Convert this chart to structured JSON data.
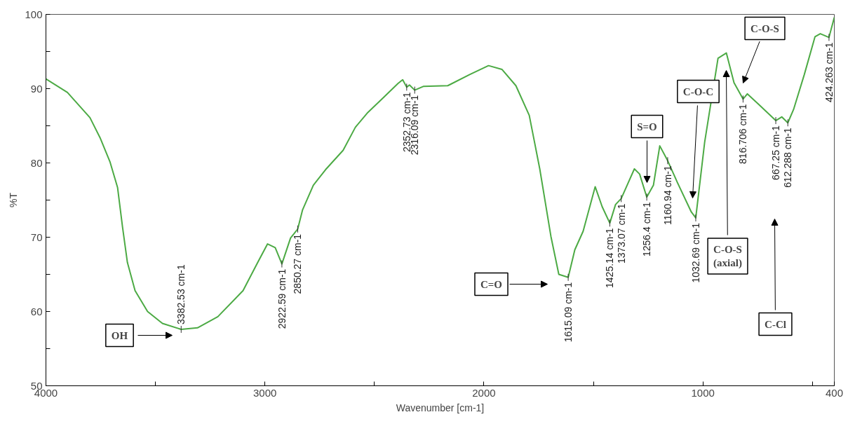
{
  "chart_data": {
    "type": "line",
    "xlabel": "Wavenumber [cm-1]",
    "ylabel": "%T",
    "xlim": [
      4000,
      400
    ],
    "ylim": [
      50,
      100
    ],
    "xticks": [
      4000,
      {
        "value": 3500,
        "label": null
      },
      3000,
      {
        "value": 2500,
        "label": null
      },
      2000,
      {
        "value": 1500,
        "label": null
      },
      1000,
      {
        "value": 500,
        "label": null
      },
      400
    ],
    "yticks": [
      50,
      {
        "value": 55,
        "label": null
      },
      60,
      {
        "value": 65,
        "label": null
      },
      70,
      {
        "value": 75,
        "label": null
      },
      80,
      {
        "value": 85,
        "label": null
      },
      90,
      {
        "value": 95,
        "label": null
      },
      100
    ],
    "grid": false,
    "marker": "none",
    "line_style": "solid",
    "series": [
      {
        "color": "#4caa44",
        "x": [
          4000,
          3902,
          3799,
          3753,
          3707,
          3673,
          3650,
          3628,
          3593,
          3536,
          3468,
          3382.53,
          3308,
          3215,
          3100,
          3033,
          2988,
          2953,
          2922.59,
          2883,
          2850.27,
          2828,
          2779,
          2723,
          2643,
          2587,
          2530,
          2459,
          2392,
          2371,
          2352.73,
          2340,
          2316.09,
          2277,
          2165,
          2065,
          1979,
          1918,
          1854,
          1793,
          1745,
          1694,
          1658,
          1615.09,
          1585,
          1547,
          1492,
          1460,
          1425.14,
          1399,
          1373.07,
          1313,
          1289,
          1256.4,
          1226,
          1197,
          1160.94,
          1117,
          1053,
          1032.69,
          992,
          931,
          893,
          858,
          816.706,
          797,
          746,
          667.25,
          640,
          612.288,
          586,
          537,
          488,
          464,
          424.263,
          400
        ],
        "values": [
          91.3,
          89.5,
          86.1,
          83.4,
          80.1,
          76.7,
          71.3,
          66.6,
          62.8,
          60.0,
          58.4,
          57.6,
          57.8,
          59.3,
          62.8,
          66.6,
          69.1,
          68.6,
          66.4,
          69.9,
          71.1,
          73.7,
          77.0,
          79.1,
          81.7,
          84.8,
          86.8,
          88.8,
          90.7,
          91.2,
          90.2,
          90.5,
          89.8,
          90.3,
          90.4,
          91.9,
          93.1,
          92.6,
          90.4,
          86.4,
          79.2,
          70.1,
          65.0,
          64.6,
          68.3,
          70.8,
          76.8,
          74.1,
          71.9,
          74.4,
          75.2,
          79.2,
          78.5,
          75.4,
          77.0,
          82.3,
          80.3,
          77.4,
          73.4,
          72.6,
          82.8,
          94.1,
          94.8,
          90.8,
          88.6,
          89.3,
          87.9,
          85.7,
          86.2,
          85.4,
          87.2,
          91.9,
          97.0,
          97.4,
          96.9,
          99.6
        ]
      }
    ],
    "annotations": [
      {
        "text": "3382.53 cm-1",
        "x": 3382.53,
        "y": 57.6
      },
      {
        "text": "2922.59 cm-1",
        "x": 2922.59,
        "y": 66.4
      },
      {
        "text": "2850.27 cm-1",
        "x": 2850.27,
        "y": 71.1
      },
      {
        "text": "2352.73 cm-1",
        "x": 2352.73,
        "y": 90.2
      },
      {
        "text": "2316.09 cm-1",
        "x": 2316.09,
        "y": 89.8
      },
      {
        "text": "1615.09 cm-1",
        "x": 1615.09,
        "y": 64.6
      },
      {
        "text": "1425.14 cm-1",
        "x": 1425.14,
        "y": 71.9
      },
      {
        "text": "1373.07 cm-1",
        "x": 1373.07,
        "y": 75.2
      },
      {
        "text": "1256.4 cm-1",
        "x": 1256.4,
        "y": 75.4
      },
      {
        "text": "1160.94 cm-1",
        "x": 1160.94,
        "y": 80.3
      },
      {
        "text": "1032.69 cm-1",
        "x": 1032.69,
        "y": 72.6
      },
      {
        "text": "816.706 cm-1",
        "x": 816.706,
        "y": 88.6
      },
      {
        "text": "667.25 cm-1",
        "x": 667.25,
        "y": 85.7
      },
      {
        "text": "612.288 cm-1",
        "x": 612.288,
        "y": 85.4
      },
      {
        "text": "424.263 cm-1",
        "x": 424.263,
        "y": 96.9
      },
      "OH",
      "C=O",
      "S=O",
      "C-O-C",
      "C-O-S\n(axial)",
      "C-O-S",
      "C-Cl"
    ]
  }
}
